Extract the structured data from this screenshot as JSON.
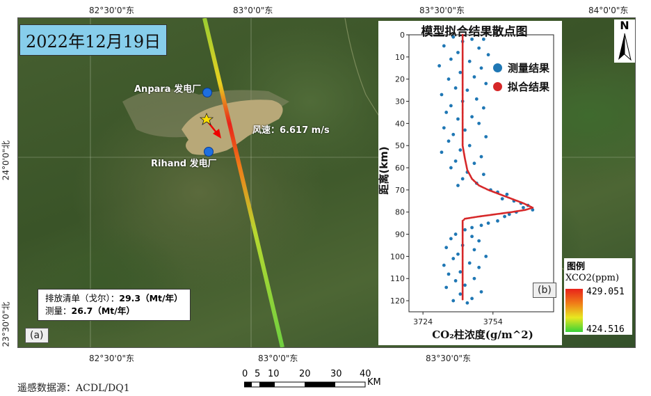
{
  "map": {
    "date_title": "2022年12月19日",
    "coords": {
      "top": [
        "82°30'0\"东",
        "83°0'0\"东",
        "83°30'0\"东",
        "84°0'0\"东"
      ],
      "bottom": [
        "82°30'0\"东",
        "83°0'0\"东",
        "83°30'0\"东"
      ],
      "left": [
        "24°0'0\"北",
        "23°30'0\"北"
      ]
    },
    "plants": [
      {
        "label": "Anpara 发电厂"
      },
      {
        "label": "Rihand 发电厂"
      }
    ],
    "wind_label": "风速：6.617 m/s",
    "info": {
      "inventory_label": "排放清单（戈尔）：",
      "inventory_value": "29.3",
      "inventory_unit": "（Mt/年）",
      "measured_label": "测量：",
      "measured_value": "26.7",
      "measured_unit": "（Mt/年）"
    },
    "panel_a_tag": "(a)",
    "north_label": "N",
    "colors": {
      "plant": "#1e6fe0",
      "track_high": "#e8221a",
      "track_low": "#38d238",
      "water": "#b8a878"
    }
  },
  "chart_data": {
    "type": "scatter",
    "title": "模型拟合结果散点图",
    "xlabel": "CO₂柱浓度(g/m^2)",
    "ylabel": "距离(km)",
    "xlim": [
      3718,
      3780
    ],
    "ylim": [
      0,
      125
    ],
    "y_inverted": true,
    "xticks": [
      3724,
      3754
    ],
    "yticks": [
      0,
      10,
      20,
      30,
      40,
      50,
      60,
      70,
      80,
      90,
      100,
      110,
      120
    ],
    "legend": [
      {
        "name": "测量结果",
        "color": "#1f77b4"
      },
      {
        "name": "拟合结果",
        "color": "#d62728"
      }
    ],
    "series": [
      {
        "name": "测量结果",
        "points": [
          [
            3737,
            1
          ],
          [
            3741,
            3
          ],
          [
            3745,
            2
          ],
          [
            3750,
            2
          ],
          [
            3733,
            5
          ],
          [
            3748,
            6
          ],
          [
            3739,
            8
          ],
          [
            3752,
            9
          ],
          [
            3736,
            11
          ],
          [
            3744,
            12
          ],
          [
            3731,
            14
          ],
          [
            3749,
            15
          ],
          [
            3740,
            17
          ],
          [
            3746,
            19
          ],
          [
            3735,
            20
          ],
          [
            3751,
            22
          ],
          [
            3738,
            24
          ],
          [
            3743,
            25
          ],
          [
            3732,
            27
          ],
          [
            3747,
            29
          ],
          [
            3741,
            30
          ],
          [
            3736,
            32
          ],
          [
            3750,
            33
          ],
          [
            3734,
            35
          ],
          [
            3745,
            37
          ],
          [
            3739,
            38
          ],
          [
            3748,
            40
          ],
          [
            3733,
            42
          ],
          [
            3742,
            43
          ],
          [
            3737,
            45
          ],
          [
            3751,
            46
          ],
          [
            3735,
            48
          ],
          [
            3744,
            50
          ],
          [
            3740,
            52
          ],
          [
            3732,
            53
          ],
          [
            3749,
            55
          ],
          [
            3738,
            57
          ],
          [
            3746,
            58
          ],
          [
            3736,
            60
          ],
          [
            3743,
            62
          ],
          [
            3750,
            63
          ],
          [
            3741,
            65
          ],
          [
            3747,
            67
          ],
          [
            3739,
            68
          ],
          [
            3753,
            70
          ],
          [
            3756,
            71
          ],
          [
            3760,
            72
          ],
          [
            3758,
            74
          ],
          [
            3763,
            75
          ],
          [
            3766,
            76
          ],
          [
            3769,
            77
          ],
          [
            3767,
            78
          ],
          [
            3771,
            79
          ],
          [
            3764,
            80
          ],
          [
            3761,
            81
          ],
          [
            3759,
            82
          ],
          [
            3756,
            84
          ],
          [
            3752,
            85
          ],
          [
            3749,
            86
          ],
          [
            3745,
            87
          ],
          [
            3742,
            88
          ],
          [
            3738,
            90
          ],
          [
            3745,
            91
          ],
          [
            3736,
            92
          ],
          [
            3748,
            93
          ],
          [
            3741,
            95
          ],
          [
            3734,
            96
          ],
          [
            3746,
            97
          ],
          [
            3739,
            99
          ],
          [
            3751,
            100
          ],
          [
            3737,
            101
          ],
          [
            3744,
            103
          ],
          [
            3733,
            104
          ],
          [
            3748,
            105
          ],
          [
            3740,
            107
          ],
          [
            3735,
            108
          ],
          [
            3746,
            110
          ],
          [
            3738,
            111
          ],
          [
            3742,
            113
          ],
          [
            3734,
            114
          ],
          [
            3749,
            116
          ],
          [
            3740,
            117
          ],
          [
            3745,
            119
          ],
          [
            3737,
            120
          ],
          [
            3743,
            121
          ]
        ]
      },
      {
        "name": "拟合结果",
        "points": [
          [
            3741,
            0
          ],
          [
            3741,
            10
          ],
          [
            3741,
            20
          ],
          [
            3741,
            30
          ],
          [
            3741,
            40
          ],
          [
            3741,
            50
          ],
          [
            3742,
            56
          ],
          [
            3743,
            61
          ],
          [
            3745,
            65
          ],
          [
            3748,
            68
          ],
          [
            3752,
            70
          ],
          [
            3757,
            72
          ],
          [
            3762,
            74
          ],
          [
            3767,
            76
          ],
          [
            3771,
            78
          ],
          [
            3768,
            79
          ],
          [
            3762,
            80
          ],
          [
            3755,
            81
          ],
          [
            3748,
            82
          ],
          [
            3742,
            83
          ],
          [
            3741,
            84
          ],
          [
            3741,
            90
          ],
          [
            3741,
            100
          ],
          [
            3741,
            110
          ],
          [
            3741,
            120
          ]
        ]
      }
    ]
  },
  "panel_b_tag": "(b)",
  "colorbar": {
    "title": "图例",
    "subtitle": "XCO2(ppm)",
    "max_label": "429.051",
    "min_label": "424.516"
  },
  "scalebar": {
    "ticks": [
      "0",
      "5",
      "10",
      "20",
      "30",
      "40"
    ],
    "unit": "KM"
  },
  "source": "遥感数据源：ACDL/DQ1"
}
